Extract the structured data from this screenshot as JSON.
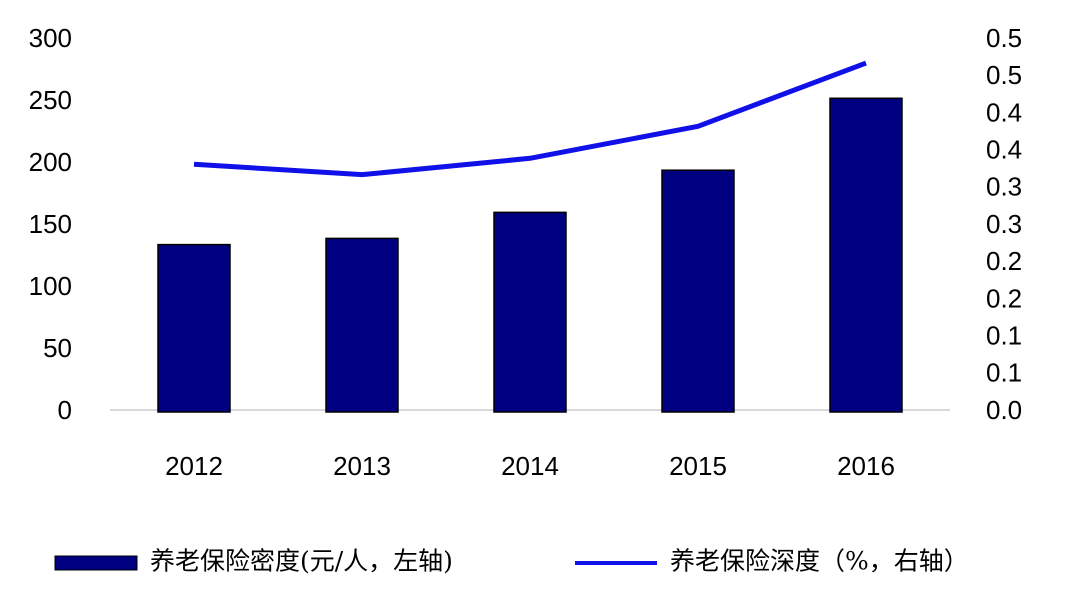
{
  "chart_data": {
    "type": "bar",
    "categories": [
      "2012",
      "2013",
      "2014",
      "2015",
      "2016"
    ],
    "series": [
      {
        "name": "养老保险密度(元/人，左轴)",
        "type": "bar",
        "color": "#000080",
        "values": [
          135,
          140,
          161,
          195,
          253
        ]
      },
      {
        "name": "养老保险深度（%，右轴）",
        "type": "line",
        "axis": "y2",
        "color": "#1010e8",
        "values": [
          0.333,
          0.319,
          0.341,
          0.384,
          0.469
        ]
      }
    ],
    "ylim": [
      0,
      300
    ],
    "yticks": [
      0,
      50,
      100,
      150,
      200,
      250,
      300
    ],
    "y2lim": [
      0,
      0.5
    ],
    "y2ticks": [
      {
        "value": 0,
        "label": "0.0"
      },
      {
        "value": 0.05,
        "label": "0.1"
      },
      {
        "value": 0.1,
        "label": "0.1"
      },
      {
        "value": 0.15,
        "label": "0.2"
      },
      {
        "value": 0.2,
        "label": "0.2"
      },
      {
        "value": 0.25,
        "label": "0.3"
      },
      {
        "value": 0.3,
        "label": "0.3"
      },
      {
        "value": 0.35,
        "label": "0.4"
      },
      {
        "value": 0.4,
        "label": "0.4"
      },
      {
        "value": 0.45,
        "label": "0.5"
      },
      {
        "value": 0.5,
        "label": "0.5"
      }
    ],
    "grid": false,
    "legend": "bottom"
  }
}
